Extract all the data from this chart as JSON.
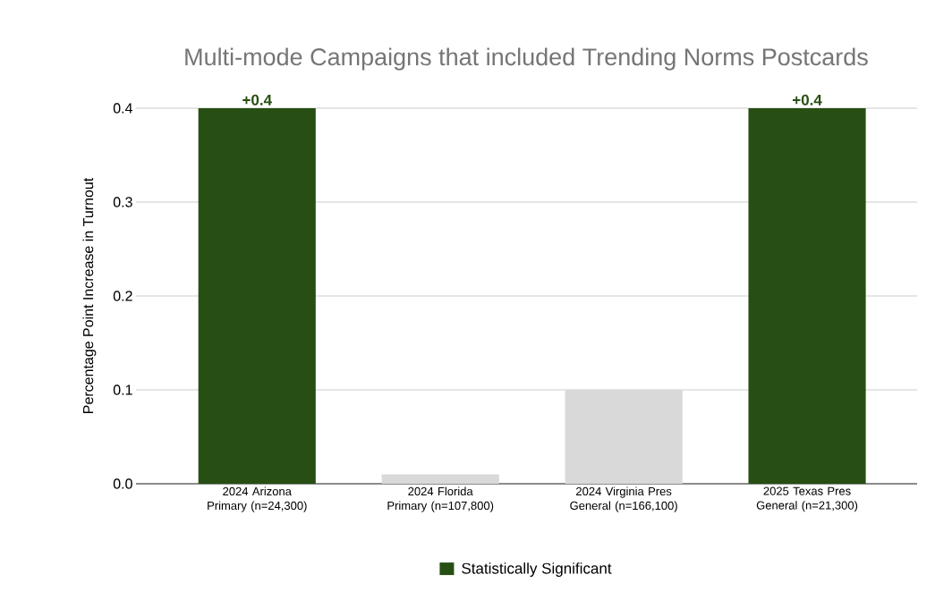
{
  "chart_data": {
    "type": "bar",
    "title": "Multi-mode Campaigns that included Trending Norms Postcards",
    "ylabel": "Percentage Point Increase in Turnout",
    "categories": [
      "2024 Arizona Primary (n=24,300)",
      "2024 Florida Primary (n=107,800)",
      "2024 Virginia Pres General (n=166,100)",
      "2025 Texas Pres General (n=21,300)"
    ],
    "series": [
      {
        "name": "Statistically Significant",
        "color": "#274e13",
        "values": [
          0.4,
          null,
          null,
          0.4
        ],
        "value_labels": [
          "+0.4",
          null,
          null,
          "+0.4"
        ]
      },
      {
        "color": "#d9d9d9",
        "values": [
          null,
          0.01,
          0.1,
          null
        ]
      }
    ],
    "ylim": [
      0,
      0.4
    ],
    "yticks": [
      {
        "value": 0,
        "label": "0.0"
      },
      {
        "value": 0.1,
        "label": "0.1"
      },
      {
        "value": 0.2,
        "label": "0.2"
      },
      {
        "value": 0.3,
        "label": "0.3"
      },
      {
        "value": 0.4,
        "label": "0.4"
      }
    ],
    "grid": "y",
    "legend": "bottom"
  }
}
